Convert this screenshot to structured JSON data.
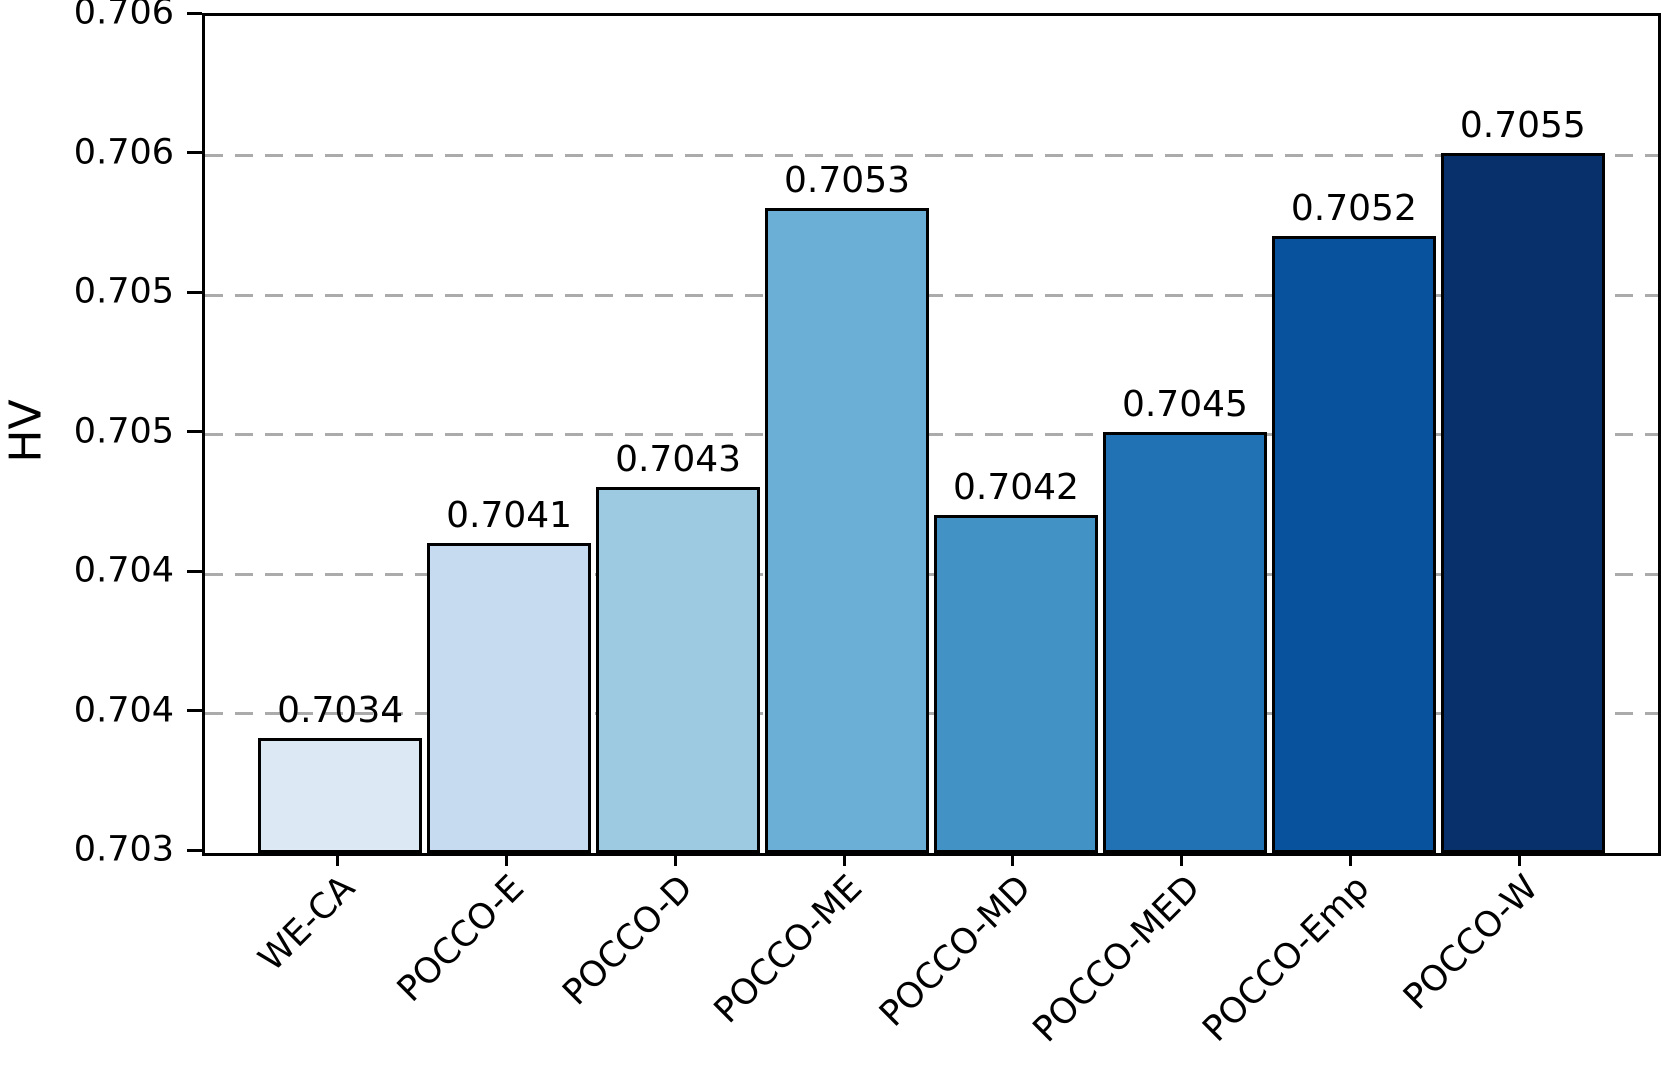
{
  "figure": {
    "ylabel": "HV",
    "background_color": "#ffffff",
    "axis_color": "#000000",
    "grid_color": "#ababab"
  },
  "chart_data": {
    "type": "bar",
    "title": "",
    "xlabel": "",
    "ylabel": "HV",
    "categories": [
      "WE-CA",
      "POCCO-E",
      "POCCO-D",
      "POCCO-ME",
      "POCCO-MD",
      "POCCO-MED",
      "POCCO-Emp",
      "POCCO-W"
    ],
    "values": [
      0.7034,
      0.7041,
      0.7043,
      0.7053,
      0.7042,
      0.7045,
      0.7052,
      0.7055
    ],
    "value_labels": [
      "0.7034",
      "0.7041",
      "0.7043",
      "0.7053",
      "0.7042",
      "0.7045",
      "0.7052",
      "0.7055"
    ],
    "bar_colors": [
      "#dce8f4",
      "#c6dbef",
      "#9ecae1",
      "#6baed6",
      "#4292c6",
      "#2171b5",
      "#08519c",
      "#08306b"
    ],
    "bar_edge_color": "#000000",
    "ylim": [
      0.703,
      0.706
    ],
    "yticks": [
      {
        "value": 0.703,
        "label": "0.703"
      },
      {
        "value": 0.7035,
        "label": "0.704"
      },
      {
        "value": 0.704,
        "label": "0.704"
      },
      {
        "value": 0.7045,
        "label": "0.705"
      },
      {
        "value": 0.705,
        "label": "0.705"
      },
      {
        "value": 0.7055,
        "label": "0.706"
      },
      {
        "value": 0.706,
        "label": "0.706"
      }
    ],
    "gridline_values": [
      0.7035,
      0.704,
      0.7045,
      0.705,
      0.7055
    ],
    "grid": {
      "visible": true,
      "axis": "y",
      "style": "dashed",
      "color": "#ababab"
    },
    "legend": {
      "visible": false
    },
    "x_tick_rotation_deg": 45
  }
}
